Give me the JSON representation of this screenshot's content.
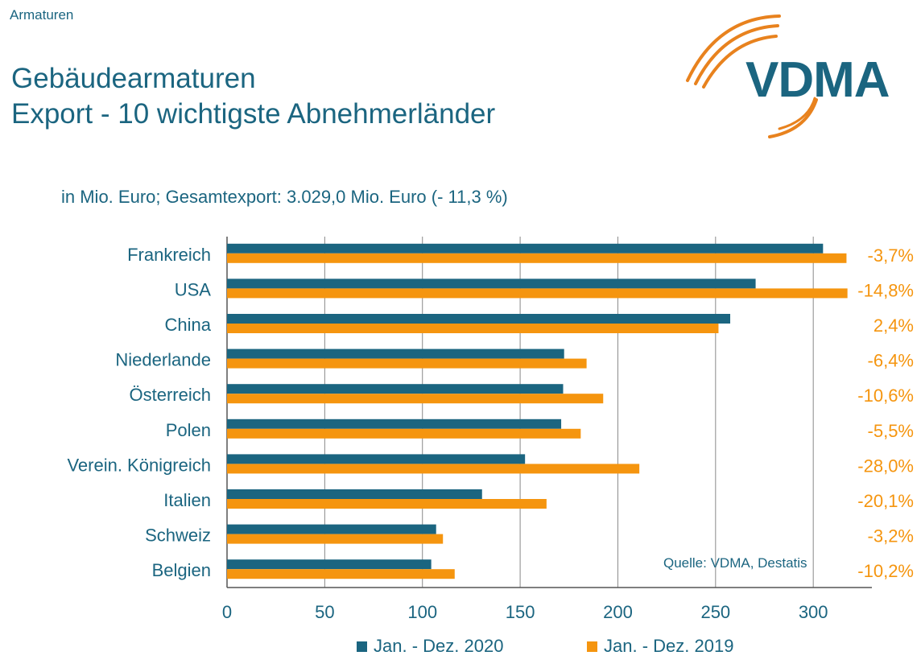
{
  "header": {
    "kicker": "Armaturen",
    "title_line1": "Gebäudearmaturen",
    "title_line2": "Export - 10 wichtigste Abnehmerländer",
    "subtitle": "in Mio. Euro; Gesamtexport: 3.029,0 Mio. Euro (- 11,3 %)"
  },
  "logo": {
    "text": "VDMA",
    "arc_color": "#e8821e",
    "text_color": "#1b6580"
  },
  "colors": {
    "series_2020": "#1b6580",
    "series_2019": "#f5950f",
    "text": "#1b6580",
    "grid": "#888888"
  },
  "source": "Quelle: VDMA, Destatis",
  "chart_data": {
    "type": "bar",
    "orientation": "horizontal",
    "categories": [
      "Frankreich",
      "USA",
      "China",
      "Niederlande",
      "Österreich",
      "Polen",
      "Verein. Königreich",
      "Italien",
      "Schweiz",
      "Belgien"
    ],
    "series": [
      {
        "name": "Jan. - Dez. 2020",
        "values": [
          305,
          270.5,
          257.5,
          172.5,
          172,
          171,
          152.5,
          130.5,
          107,
          104.5
        ]
      },
      {
        "name": "Jan. - Dez. 2019",
        "values": [
          317,
          317.5,
          251.5,
          184,
          192.5,
          181,
          211,
          163.5,
          110.5,
          116.5
        ]
      }
    ],
    "change_labels": [
      "-3,7%",
      "-14,8%",
      "2,4%",
      "-6,4%",
      "-10,6%",
      "-5,5%",
      "-28,0%",
      "-20,1%",
      "-3,2%",
      "-10,2%"
    ],
    "xticks": [
      "0",
      "50",
      "100",
      "150",
      "200",
      "250",
      "300"
    ],
    "xlim": [
      0,
      330
    ],
    "grid": "vertical",
    "legend_position": "bottom"
  }
}
